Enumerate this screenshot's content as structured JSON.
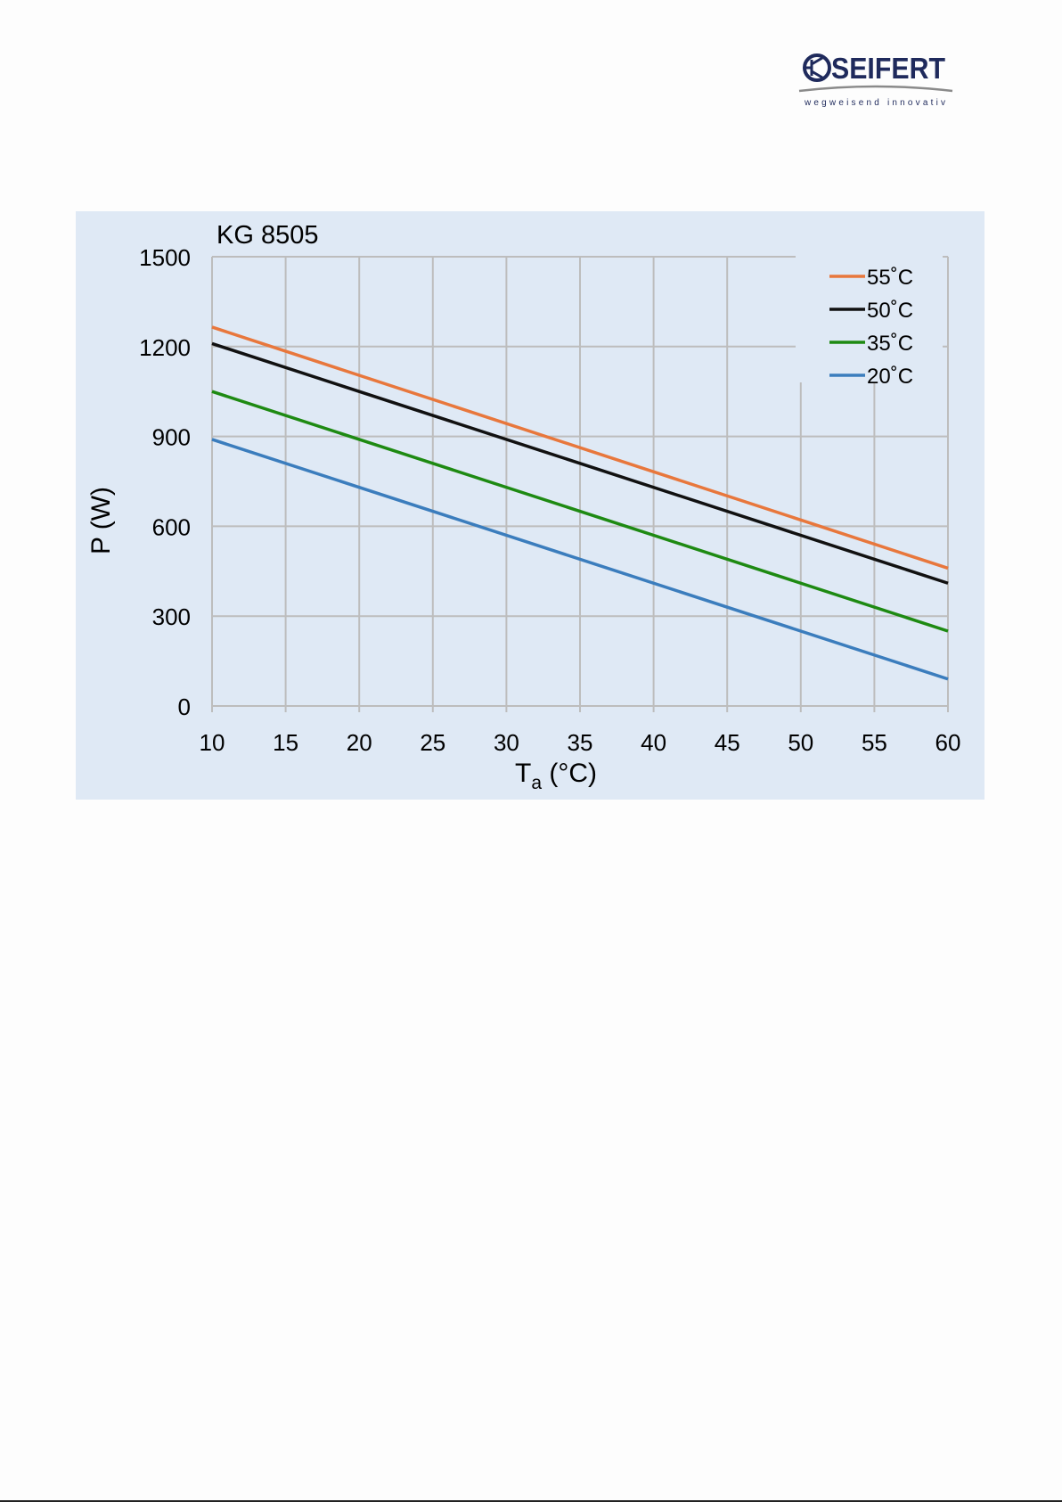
{
  "logo": {
    "brand": "SEIFERT",
    "tagline": "wegweisend innovativ",
    "color": "#1f2a5c",
    "icon": "transistor-symbol-icon"
  },
  "chart_data": {
    "type": "line",
    "title": "KG 8505",
    "xlabel_main": "T",
    "xlabel_sub": "a",
    "xlabel_unit": " (°C)",
    "ylabel": "P (W)",
    "xlim": [
      10,
      60
    ],
    "ylim": [
      0,
      1500
    ],
    "xticks": [
      10,
      15,
      20,
      25,
      30,
      35,
      40,
      45,
      50,
      55,
      60
    ],
    "yticks": [
      0,
      300,
      600,
      900,
      1200,
      1500
    ],
    "grid": true,
    "legend_position": "top-right",
    "x": [
      10,
      60
    ],
    "series": [
      {
        "name": "55˚C",
        "values": [
          1265,
          460
        ],
        "color": "#e8773c"
      },
      {
        "name": "50˚C",
        "values": [
          1210,
          410
        ],
        "color": "#111111"
      },
      {
        "name": "35˚C",
        "values": [
          1050,
          250
        ],
        "color": "#1e8a12"
      },
      {
        "name": "20˚C",
        "values": [
          890,
          90
        ],
        "color": "#3b7dbd"
      }
    ]
  }
}
